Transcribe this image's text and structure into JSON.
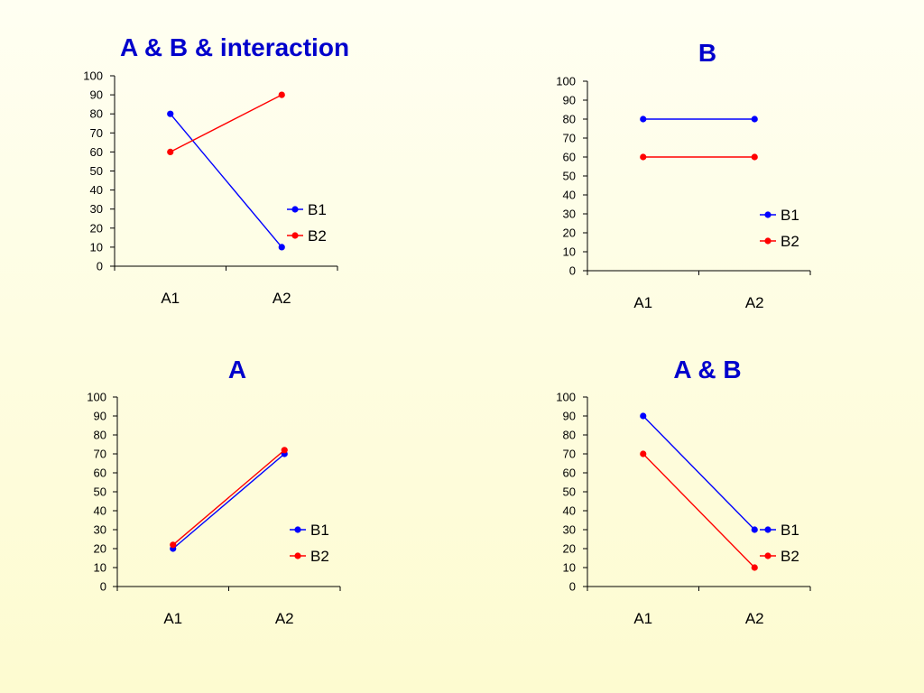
{
  "colors": {
    "B1": "#0000ff",
    "B2": "#ff0000",
    "title": "#0000cc"
  },
  "chart_data": [
    {
      "type": "line",
      "title": "A & B & interaction",
      "categories": [
        "A1",
        "A2"
      ],
      "ylim": [
        0,
        100
      ],
      "yticks": [
        0,
        10,
        20,
        30,
        40,
        50,
        60,
        70,
        80,
        90,
        100
      ],
      "legend": "right",
      "series": [
        {
          "name": "B1",
          "values": [
            80,
            10
          ]
        },
        {
          "name": "B2",
          "values": [
            60,
            90
          ]
        }
      ]
    },
    {
      "type": "line",
      "title": "B",
      "categories": [
        "A1",
        "A2"
      ],
      "ylim": [
        0,
        100
      ],
      "yticks": [
        0,
        10,
        20,
        30,
        40,
        50,
        60,
        70,
        80,
        90,
        100
      ],
      "legend": "right",
      "series": [
        {
          "name": "B1",
          "values": [
            80,
            80
          ]
        },
        {
          "name": "B2",
          "values": [
            60,
            60
          ]
        }
      ]
    },
    {
      "type": "line",
      "title": "A",
      "categories": [
        "A1",
        "A2"
      ],
      "ylim": [
        0,
        100
      ],
      "yticks": [
        0,
        10,
        20,
        30,
        40,
        50,
        60,
        70,
        80,
        90,
        100
      ],
      "legend": "right",
      "series": [
        {
          "name": "B1",
          "values": [
            20,
            70
          ]
        },
        {
          "name": "B2",
          "values": [
            22,
            72
          ]
        }
      ]
    },
    {
      "type": "line",
      "title": "A & B",
      "categories": [
        "A1",
        "A2"
      ],
      "ylim": [
        0,
        100
      ],
      "yticks": [
        0,
        10,
        20,
        30,
        40,
        50,
        60,
        70,
        80,
        90,
        100
      ],
      "legend": "right",
      "series": [
        {
          "name": "B1",
          "values": [
            90,
            30
          ]
        },
        {
          "name": "B2",
          "values": [
            70,
            10
          ]
        }
      ]
    }
  ]
}
